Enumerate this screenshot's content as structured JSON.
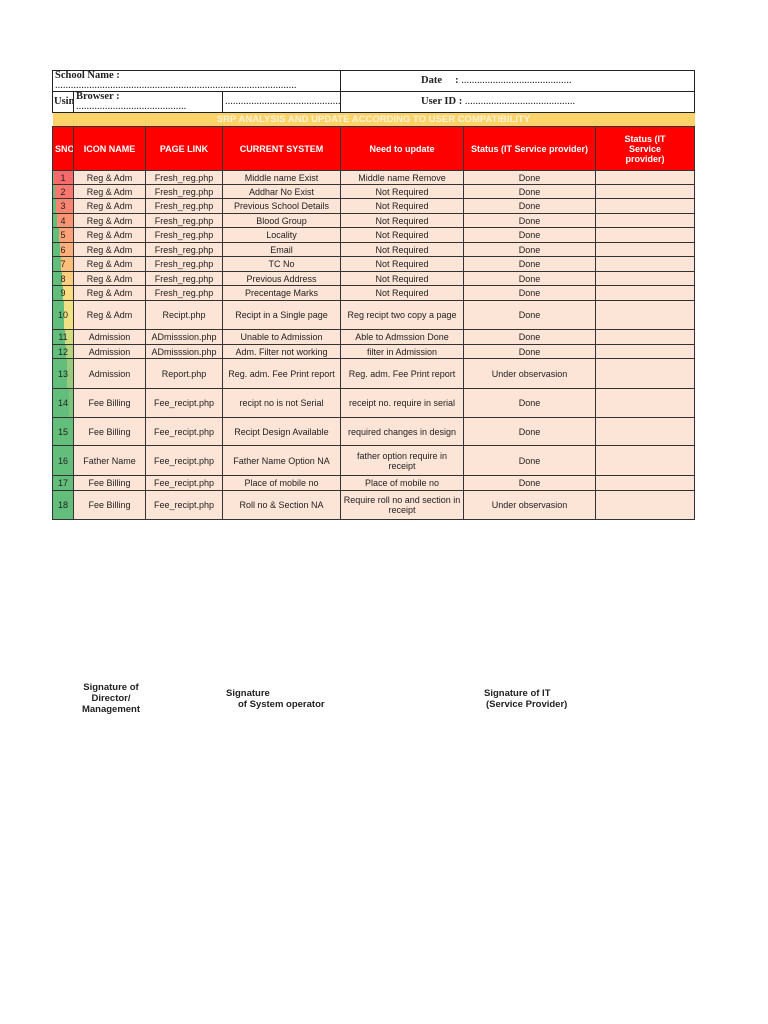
{
  "form": {
    "school_name_label": "School Name :",
    "date_label": "Date",
    "using_label": "Using",
    "browser_label": "Browser :",
    "user_id_label": "User ID :",
    "dots_long": "............................................................................................",
    "dots_short": "..........................................",
    "dots_mid": "..............................................................."
  },
  "banner": "SRP ANALYSIS AND UPDATE ACCORDING TO USER COMPATIBILITY",
  "headers": [
    "SNO",
    "ICON NAME",
    "PAGE LINK",
    "CURRENT SYSTEM",
    "Need to update",
    "Status (IT Service provider)",
    "Status (IT Service provider)"
  ],
  "colors": {
    "header": "#ff0000",
    "banner": "#fcd36b",
    "row": "#fce4d6",
    "databar": "#63be7b"
  },
  "sno_colors": [
    "#f8696b",
    "#f8776e",
    "#f98570",
    "#fa9473",
    "#fba276",
    "#fcb079",
    "#fdbf7b",
    "#fece7e",
    "#ffdc81",
    "#f0e183",
    "#d2dc81",
    "#b5d480",
    "#98cb7e",
    "#7cc37c",
    "#63be7b",
    "#63be7b",
    "#63be7b",
    "#63be7b"
  ],
  "rows": [
    {
      "sno": "1",
      "icon": "Reg & Adm",
      "page": "Fresh_reg.php",
      "current": "Middle name Exist",
      "need": "Middle name Remove",
      "status": "Done",
      "status2": ""
    },
    {
      "sno": "2",
      "icon": "Reg & Adm",
      "page": "Fresh_reg.php",
      "current": "Addhar No Exist",
      "need": "Not Required",
      "status": "Done",
      "status2": ""
    },
    {
      "sno": "3",
      "icon": "Reg & Adm",
      "page": "Fresh_reg.php",
      "current": "Previous School Details",
      "need": "Not Required",
      "status": "Done",
      "status2": ""
    },
    {
      "sno": "4",
      "icon": "Reg & Adm",
      "page": "Fresh_reg.php",
      "current": "Blood Group",
      "need": "Not Required",
      "status": "Done",
      "status2": ""
    },
    {
      "sno": "5",
      "icon": "Reg & Adm",
      "page": "Fresh_reg.php",
      "current": "Locality",
      "need": "Not Required",
      "status": "Done",
      "status2": ""
    },
    {
      "sno": "6",
      "icon": "Reg & Adm",
      "page": "Fresh_reg.php",
      "current": "Email",
      "need": "Not Required",
      "status": "Done",
      "status2": ""
    },
    {
      "sno": "7",
      "icon": "Reg & Adm",
      "page": "Fresh_reg.php",
      "current": "TC No",
      "need": "Not Required",
      "status": "Done",
      "status2": ""
    },
    {
      "sno": "8",
      "icon": "Reg & Adm",
      "page": "Fresh_reg.php",
      "current": "Previous Address",
      "need": "Not Required",
      "status": "Done",
      "status2": ""
    },
    {
      "sno": "9",
      "icon": "Reg & Adm",
      "page": "Fresh_reg.php",
      "current": "Precentage Marks",
      "need": "Not Required",
      "status": "Done",
      "status2": ""
    },
    {
      "sno": "10",
      "icon": "Reg & Adm",
      "page": "Recipt.php",
      "current": "Recipt in a Single page",
      "need": "Reg recipt two copy a page",
      "status": "Done",
      "status2": ""
    },
    {
      "sno": "11",
      "icon": "Admission",
      "page": "ADmisssion.php",
      "current": "Unable to Admission",
      "need": "Able to Admssion Done",
      "status": "Done",
      "status2": ""
    },
    {
      "sno": "12",
      "icon": "Admission",
      "page": "ADmisssion.php",
      "current": "Adm. Filter  not working",
      "need": "filter in Admission",
      "status": "Done",
      "status2": ""
    },
    {
      "sno": "13",
      "icon": "Admission",
      "page": "Report.php",
      "current": "Reg. adm. Fee Print report",
      "need": "Reg. adm. Fee Print report",
      "status": "Under observasion",
      "status2": ""
    },
    {
      "sno": "14",
      "icon": "Fee Billing",
      "page": "Fee_recipt.php",
      "current": "recipt no is not Serial",
      "need": "receipt no. require in serial",
      "status": "Done",
      "status2": ""
    },
    {
      "sno": "15",
      "icon": "Fee Billing",
      "page": "Fee_recipt.php",
      "current": "Recipt Design Available",
      "need": "required changes in design",
      "status": "Done",
      "status2": ""
    },
    {
      "sno": "16",
      "icon": "Father Name",
      "page": "Fee_recipt.php",
      "current": "Father Name Option NA",
      "need": "father option require in receipt",
      "status": "Done",
      "status2": ""
    },
    {
      "sno": "17",
      "icon": "Fee Billing",
      "page": "Fee_recipt.php",
      "current": "Place of mobile no",
      "need": "Place of mobile no",
      "status": "Done",
      "status2": ""
    },
    {
      "sno": "18",
      "icon": "Fee Billing",
      "page": "Fee_recipt.php",
      "current": "Roll no & Section NA",
      "need": "Require roll no and section in receipt",
      "status": "Under observasion",
      "status2": ""
    }
  ],
  "signatures": {
    "director": "Signature of Director/ Management",
    "operator_line1": "Signature",
    "operator_line2": "of System operator",
    "it_line1": "Signature of IT",
    "it_line2": "(Service Provider)"
  }
}
